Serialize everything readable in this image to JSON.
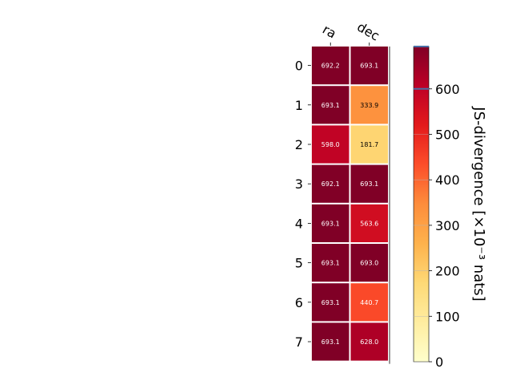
{
  "chart_data": {
    "type": "heatmap",
    "x_categories": [
      "ra",
      "dec"
    ],
    "y_categories": [
      "0",
      "1",
      "2",
      "3",
      "4",
      "5",
      "6",
      "7"
    ],
    "values": [
      [
        692.2,
        693.1
      ],
      [
        693.1,
        333.9
      ],
      [
        598.0,
        181.7
      ],
      [
        692.1,
        693.1
      ],
      [
        693.1,
        563.6
      ],
      [
        693.1,
        693.0
      ],
      [
        693.1,
        440.7
      ],
      [
        693.1,
        628.0
      ]
    ],
    "cell_labels": [
      [
        "692.2",
        "693.1"
      ],
      [
        "693.1",
        "333.9"
      ],
      [
        "598.0",
        "181.7"
      ],
      [
        "692.1",
        "693.1"
      ],
      [
        "693.1",
        "563.6"
      ],
      [
        "693.1",
        "693.0"
      ],
      [
        "693.1",
        "440.7"
      ],
      [
        "693.1",
        "628.0"
      ]
    ],
    "colorbar": {
      "label": "JS-divergence [×10⁻³ nats]",
      "ticks": [
        0,
        100,
        200,
        300,
        400,
        500,
        600
      ],
      "tick_labels": [
        "0",
        "100",
        "200",
        "300",
        "400",
        "500",
        "600"
      ],
      "range": [
        0,
        693.1
      ],
      "colormap": "YlOrRd",
      "marker_lines": [
        600,
        693.1
      ]
    },
    "colors": {
      "cmap_stops": [
        "#ffffcc",
        "#ffeda0",
        "#fed976",
        "#feb24c",
        "#fd8d3c",
        "#fc4e2a",
        "#e31a1c",
        "#bd0026",
        "#800026"
      ],
      "marker_line": "#4a6fa5",
      "dark_text": "#000000",
      "light_text": "#ffffff"
    }
  }
}
